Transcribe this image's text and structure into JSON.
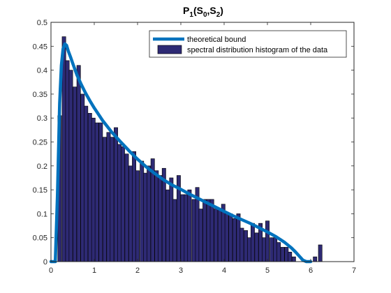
{
  "chart_data": {
    "type": "bar",
    "title": "P1(S0,S2)",
    "title_parts": {
      "main": "P",
      "sub1": "1",
      "open": "(S",
      "sub2": "0",
      "comma": ",S",
      "sub3": "2",
      "close": ")"
    },
    "xlabel": "",
    "ylabel": "",
    "xlim": [
      0,
      7
    ],
    "ylim": [
      0,
      0.5
    ],
    "xticks": [
      "0",
      "1",
      "2",
      "3",
      "4",
      "5",
      "6",
      "7"
    ],
    "yticks": [
      "0",
      "0.05",
      "0.1",
      "0.15",
      "0.2",
      "0.25",
      "0.3",
      "0.35",
      "0.4",
      "0.45",
      "0.5"
    ],
    "grid": false,
    "legend_position": "top-right",
    "legend": [
      "theoretical bound",
      "spectral distribution histogram of the  data"
    ],
    "colors": {
      "bar_fill": "#2e2a74",
      "bar_edge": "#000000",
      "line": "#0072bd",
      "axes": "#262626"
    },
    "histogram": {
      "name": "spectral distribution histogram of the  data",
      "bin_width": 0.085,
      "x": [
        0.2,
        0.3,
        0.38,
        0.46,
        0.55,
        0.64,
        0.73,
        0.81,
        0.9,
        0.98,
        1.06,
        1.15,
        1.24,
        1.33,
        1.41,
        1.5,
        1.58,
        1.66,
        1.75,
        1.84,
        1.92,
        2.0,
        2.1,
        2.18,
        2.26,
        2.35,
        2.44,
        2.52,
        2.61,
        2.7,
        2.78,
        2.86,
        2.95,
        3.04,
        3.12,
        3.2,
        3.3,
        3.38,
        3.46,
        3.55,
        3.64,
        3.72,
        3.81,
        3.9,
        3.98,
        4.06,
        4.15,
        4.24,
        4.33,
        4.41,
        4.5,
        4.58,
        4.66,
        4.75,
        4.84,
        4.92,
        5.0,
        5.1,
        5.18,
        5.26,
        5.35,
        5.44,
        5.52,
        5.61,
        6.1,
        6.22
      ],
      "values": [
        0.305,
        0.47,
        0.42,
        0.4,
        0.365,
        0.41,
        0.35,
        0.325,
        0.31,
        0.3,
        0.29,
        0.29,
        0.26,
        0.27,
        0.26,
        0.28,
        0.245,
        0.24,
        0.225,
        0.2,
        0.23,
        0.19,
        0.21,
        0.185,
        0.2,
        0.215,
        0.19,
        0.18,
        0.195,
        0.15,
        0.175,
        0.13,
        0.18,
        0.14,
        0.14,
        0.15,
        0.13,
        0.155,
        0.11,
        0.13,
        0.13,
        0.13,
        0.11,
        0.11,
        0.12,
        0.1,
        0.1,
        0.09,
        0.1,
        0.07,
        0.065,
        0.05,
        0.08,
        0.06,
        0.08,
        0.05,
        0.085,
        0.05,
        0.05,
        0.04,
        0.03,
        0.03,
        0.02,
        0.01,
        0.01,
        0.035
      ]
    },
    "curve": {
      "name": "theoretical bound",
      "x": [
        0.0,
        0.1,
        0.15,
        0.2,
        0.24,
        0.28,
        0.32,
        0.36,
        0.4,
        0.45,
        0.5,
        0.6,
        0.7,
        0.8,
        0.9,
        1.0,
        1.2,
        1.4,
        1.6,
        1.8,
        2.0,
        2.2,
        2.4,
        2.6,
        2.8,
        3.0,
        3.2,
        3.4,
        3.6,
        3.8,
        4.0,
        4.2,
        4.4,
        4.6,
        4.8,
        5.0,
        5.2,
        5.4,
        5.55,
        5.65,
        5.75,
        5.82,
        5.9,
        6.0
      ],
      "y": [
        0.0,
        0.0,
        0.14,
        0.33,
        0.41,
        0.445,
        0.455,
        0.452,
        0.44,
        0.428,
        0.415,
        0.39,
        0.37,
        0.352,
        0.336,
        0.321,
        0.294,
        0.271,
        0.251,
        0.232,
        0.214,
        0.198,
        0.184,
        0.171,
        0.16,
        0.151,
        0.141,
        0.132,
        0.123,
        0.114,
        0.105,
        0.096,
        0.088,
        0.08,
        0.071,
        0.062,
        0.052,
        0.04,
        0.029,
        0.02,
        0.01,
        0.003,
        0.0,
        0.0
      ]
    }
  }
}
